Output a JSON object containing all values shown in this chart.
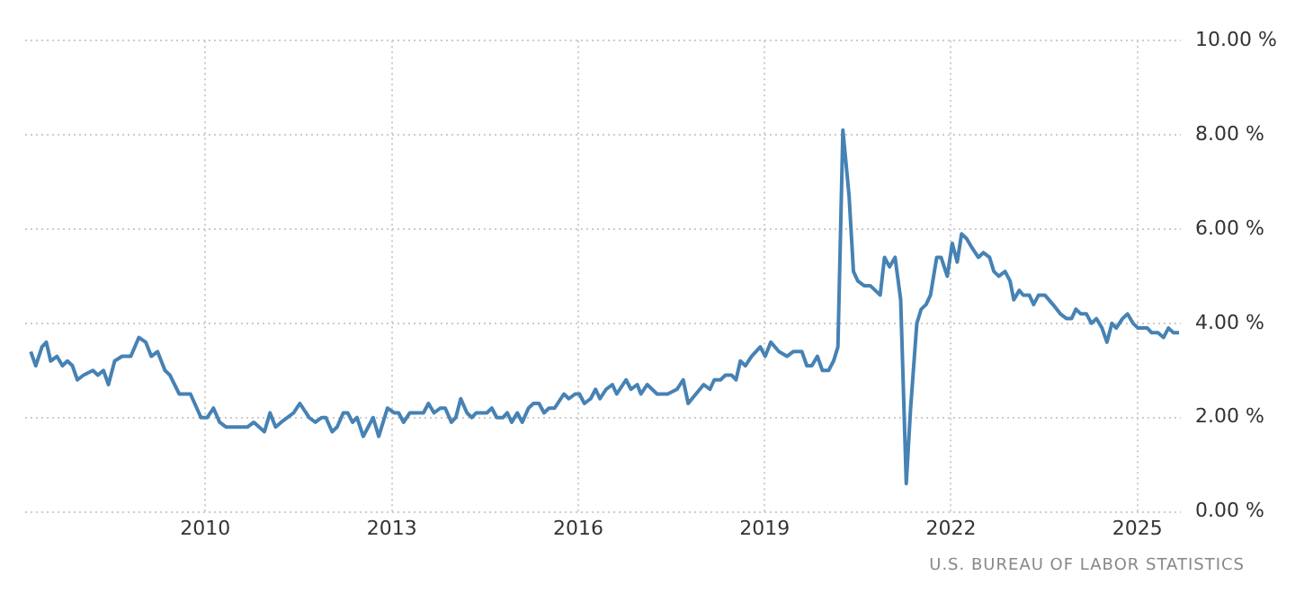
{
  "chart_data": {
    "type": "line",
    "annotations": [
      "U.S. BUREAU OF LABOR STATISTICS"
    ],
    "xlim": [
      2007.1,
      2025.7
    ],
    "xticks": [
      2010,
      2013,
      2016,
      2019,
      2022,
      2025
    ],
    "ylim": [
      0,
      10
    ],
    "yticks": [
      {
        "value": 0,
        "label": "0.00 %"
      },
      {
        "value": 2,
        "label": "2.00 %"
      },
      {
        "value": 4,
        "label": "4.00 %"
      },
      {
        "value": 6,
        "label": "6.00 %"
      },
      {
        "value": 8,
        "label": "8.00 %"
      },
      {
        "value": 10,
        "label": "10.00 %"
      }
    ],
    "grid": true,
    "legend": false,
    "marker": "none",
    "line_style": "solid",
    "series": [
      {
        "color": "#4682b4",
        "x": [
          2007.19,
          2007.27,
          2007.37,
          2007.44,
          2007.51,
          2007.61,
          2007.7,
          2007.78,
          2007.86,
          2007.94,
          2008.04,
          2008.19,
          2008.27,
          2008.36,
          2008.44,
          2008.54,
          2008.66,
          2008.8,
          2008.93,
          2009.04,
          2009.13,
          2009.23,
          2009.35,
          2009.43,
          2009.58,
          2009.66,
          2009.76,
          2009.93,
          2010.03,
          2010.13,
          2010.23,
          2010.33,
          2010.68,
          2010.78,
          2010.95,
          2011.04,
          2011.13,
          2011.22,
          2011.42,
          2011.52,
          2011.67,
          2011.77,
          2011.87,
          2011.94,
          2012.04,
          2012.12,
          2012.22,
          2012.29,
          2012.37,
          2012.44,
          2012.54,
          2012.7,
          2012.79,
          2012.93,
          2013.04,
          2013.11,
          2013.19,
          2013.29,
          2013.51,
          2013.59,
          2013.68,
          2013.78,
          2013.86,
          2013.96,
          2014.03,
          2014.11,
          2014.21,
          2014.29,
          2014.36,
          2014.53,
          2014.61,
          2014.69,
          2014.79,
          2014.86,
          2014.93,
          2015.02,
          2015.1,
          2015.2,
          2015.28,
          2015.37,
          2015.45,
          2015.53,
          2015.62,
          2015.77,
          2015.85,
          2015.95,
          2016.02,
          2016.1,
          2016.2,
          2016.28,
          2016.35,
          2016.45,
          2016.55,
          2016.62,
          2016.77,
          2016.85,
          2016.95,
          2017.01,
          2017.11,
          2017.27,
          2017.44,
          2017.59,
          2017.69,
          2017.77,
          2018.02,
          2018.12,
          2018.19,
          2018.29,
          2018.37,
          2018.47,
          2018.54,
          2018.61,
          2018.69,
          2018.79,
          2018.93,
          2019.01,
          2019.1,
          2019.23,
          2019.36,
          2019.46,
          2019.6,
          2019.68,
          2019.76,
          2019.85,
          2019.93,
          2020.03,
          2020.11,
          2020.18,
          2020.26,
          2020.36,
          2020.43,
          2020.5,
          2020.6,
          2020.7,
          2020.78,
          2020.86,
          2020.93,
          2021.01,
          2021.1,
          2021.19,
          2021.28,
          2021.35,
          2021.45,
          2021.52,
          2021.6,
          2021.67,
          2021.77,
          2021.84,
          2021.94,
          2022.02,
          2022.1,
          2022.17,
          2022.25,
          2022.34,
          2022.44,
          2022.52,
          2022.62,
          2022.69,
          2022.77,
          2022.87,
          2022.95,
          2023.01,
          2023.1,
          2023.16,
          2023.26,
          2023.33,
          2023.41,
          2023.51,
          2023.64,
          2023.76,
          2023.86,
          2023.94,
          2024.01,
          2024.09,
          2024.18,
          2024.26,
          2024.34,
          2024.43,
          2024.51,
          2024.59,
          2024.66,
          2024.76,
          2024.84,
          2024.93,
          2025.01,
          2025.16,
          2025.23,
          2025.33,
          2025.42,
          2025.5,
          2025.58,
          2025.67
        ],
        "values": [
          3.4,
          3.1,
          3.5,
          3.6,
          3.2,
          3.3,
          3.1,
          3.2,
          3.1,
          2.8,
          2.9,
          3.0,
          2.9,
          3.0,
          2.7,
          3.2,
          3.3,
          3.3,
          3.7,
          3.6,
          3.3,
          3.4,
          3.0,
          2.9,
          2.5,
          2.5,
          2.5,
          2.0,
          2.0,
          2.2,
          1.9,
          1.8,
          1.8,
          1.9,
          1.7,
          2.1,
          1.8,
          1.9,
          2.1,
          2.3,
          2.0,
          1.9,
          2.0,
          2.0,
          1.7,
          1.8,
          2.1,
          2.1,
          1.9,
          2.0,
          1.6,
          2.0,
          1.6,
          2.2,
          2.1,
          2.1,
          1.9,
          2.1,
          2.1,
          2.3,
          2.1,
          2.2,
          2.2,
          1.9,
          2.0,
          2.4,
          2.1,
          2.0,
          2.1,
          2.1,
          2.2,
          2.0,
          2.0,
          2.1,
          1.9,
          2.1,
          1.9,
          2.2,
          2.3,
          2.3,
          2.1,
          2.2,
          2.2,
          2.5,
          2.4,
          2.5,
          2.5,
          2.3,
          2.4,
          2.6,
          2.4,
          2.6,
          2.7,
          2.5,
          2.8,
          2.6,
          2.7,
          2.5,
          2.7,
          2.5,
          2.5,
          2.6,
          2.8,
          2.3,
          2.7,
          2.6,
          2.8,
          2.8,
          2.9,
          2.9,
          2.8,
          3.2,
          3.1,
          3.3,
          3.5,
          3.3,
          3.6,
          3.4,
          3.3,
          3.4,
          3.4,
          3.1,
          3.1,
          3.3,
          3.0,
          3.0,
          3.2,
          3.5,
          8.1,
          6.7,
          5.1,
          4.9,
          4.8,
          4.8,
          4.7,
          4.6,
          5.4,
          5.2,
          5.4,
          4.5,
          0.6,
          2.2,
          4.0,
          4.3,
          4.4,
          4.6,
          5.4,
          5.4,
          5.0,
          5.7,
          5.3,
          5.9,
          5.8,
          5.6,
          5.4,
          5.5,
          5.4,
          5.1,
          5.0,
          5.1,
          4.9,
          4.5,
          4.7,
          4.6,
          4.6,
          4.4,
          4.6,
          4.6,
          4.4,
          4.2,
          4.1,
          4.1,
          4.3,
          4.2,
          4.2,
          4.0,
          4.1,
          3.9,
          3.6,
          4.0,
          3.9,
          4.1,
          4.2,
          4.0,
          3.9,
          3.9,
          3.8,
          3.8,
          3.7,
          3.9,
          3.8,
          3.8
        ]
      }
    ]
  }
}
